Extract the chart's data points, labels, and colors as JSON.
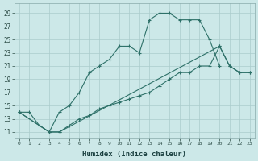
{
  "bg_color": "#cce8e8",
  "grid_color": "#aacccc",
  "line_color": "#2d7068",
  "xlabel": "Humidex (Indice chaleur)",
  "xlim": [
    -0.5,
    23.5
  ],
  "ylim": [
    10.0,
    30.5
  ],
  "xtick_labels": [
    "0",
    "1",
    "2",
    "3",
    "4",
    "5",
    "6",
    "7",
    "8",
    "9",
    "10",
    "11",
    "12",
    "13",
    "14",
    "15",
    "16",
    "17",
    "18",
    "19",
    "20",
    "21",
    "22",
    "23"
  ],
  "ytick_vals": [
    11,
    13,
    15,
    17,
    19,
    21,
    23,
    25,
    27,
    29
  ],
  "line1_x": [
    0,
    1,
    2,
    3,
    4,
    5,
    6,
    7,
    8,
    9,
    10,
    11,
    12,
    13,
    14,
    15,
    16,
    17,
    18,
    19,
    20
  ],
  "line1_y": [
    14,
    14,
    12,
    11,
    14,
    15,
    17,
    20,
    21,
    22,
    24,
    24,
    23,
    28,
    29,
    29,
    28,
    28,
    28,
    25,
    21
  ],
  "line2_x": [
    0,
    3,
    4,
    20,
    21,
    22,
    23
  ],
  "line2_y": [
    14,
    11,
    11,
    24,
    21,
    20,
    20
  ],
  "line3_x": [
    0,
    3,
    4,
    5,
    6,
    7,
    8,
    9,
    10,
    11,
    12,
    13,
    14,
    15,
    16,
    17,
    18,
    19,
    20,
    21,
    22,
    23
  ],
  "line3_y": [
    14,
    11,
    11,
    12,
    13,
    13.5,
    14.5,
    15,
    15.5,
    16,
    16.5,
    17,
    18,
    19,
    20,
    20,
    21,
    21,
    24,
    21,
    20,
    20
  ]
}
